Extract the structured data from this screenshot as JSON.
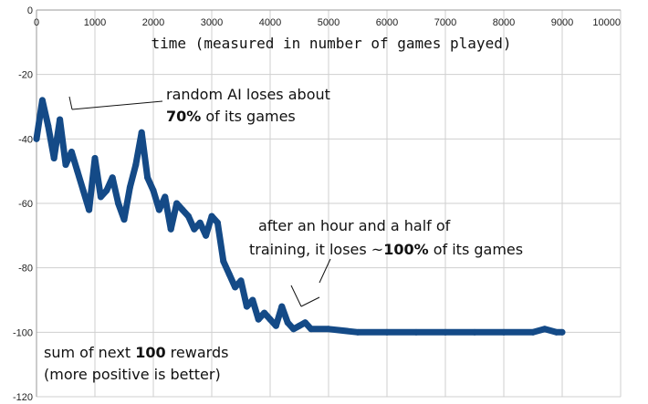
{
  "chart_data": {
    "type": "line",
    "title": "",
    "xlabel": "time (measured in number of games played)",
    "ylabel": "sum of next 100 rewards (more positive is better)",
    "xlim": [
      0,
      10000
    ],
    "ylim": [
      -120,
      0
    ],
    "x_ticks": [
      0,
      1000,
      2000,
      3000,
      4000,
      5000,
      6000,
      7000,
      8000,
      9000,
      10000
    ],
    "y_ticks": [
      0,
      -20,
      -40,
      -60,
      -80,
      -100,
      -120
    ],
    "grid": true,
    "line_color": "#144a87",
    "series": [
      {
        "x": [
          0,
          100,
          200,
          300,
          400,
          500,
          600,
          700,
          800,
          900,
          1000,
          1100,
          1200,
          1300,
          1400,
          1500,
          1600,
          1700,
          1800,
          1900,
          2000,
          2100,
          2200,
          2300,
          2400,
          2500,
          2600,
          2700,
          2800,
          2900,
          3000,
          3100,
          3200,
          3300,
          3400,
          3500,
          3600,
          3700,
          3800,
          3900,
          4000,
          4100,
          4200,
          4300,
          4400,
          4500,
          4600,
          4700,
          5000,
          5500,
          6000,
          6500,
          7000,
          7500,
          8000,
          8500,
          8700,
          8900,
          9000
        ],
        "values": [
          -40,
          -28,
          -36,
          -46,
          -34,
          -48,
          -44,
          -50,
          -56,
          -62,
          -46,
          -58,
          -56,
          -52,
          -60,
          -65,
          -55,
          -48,
          -38,
          -52,
          -56,
          -62,
          -58,
          -68,
          -60,
          -62,
          -64,
          -68,
          -66,
          -70,
          -64,
          -66,
          -78,
          -82,
          -86,
          -84,
          -92,
          -90,
          -96,
          -94,
          -96,
          -98,
          -92,
          -97,
          -99,
          -98,
          -97,
          -99,
          -99,
          -100,
          -100,
          -100,
          -100,
          -100,
          -100,
          -100,
          -99,
          -100,
          -100
        ]
      }
    ]
  },
  "annotations": {
    "random_line1": "random AI loses about",
    "random_pct": "70%",
    "random_rest": " of its games",
    "trained_line1": "after an hour and a half of",
    "trained_prefix": "training, it loses ~",
    "trained_pct": "100%",
    "trained_rest": " of its games",
    "ylabel_line1_prefix": "sum of next ",
    "ylabel_line1_num": "100",
    "ylabel_line1_suffix": " rewards",
    "ylabel_line2": "(more positive is better)"
  }
}
